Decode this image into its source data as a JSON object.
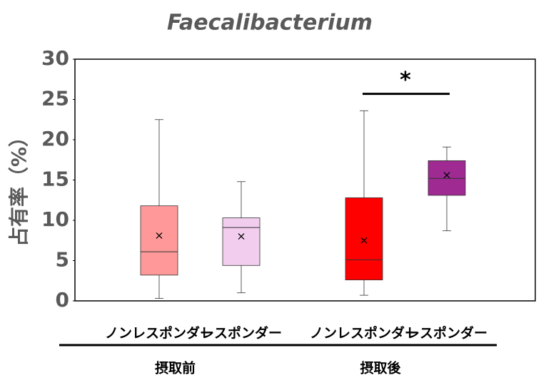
{
  "chart_data": {
    "type": "box",
    "title": "Faecalibacterium",
    "y_label": "占有率（%）",
    "categories": [
      "ノンレスポンダー",
      "レスポンダー",
      "ノンレスポンダー",
      "レスポンダー"
    ],
    "groups": [
      "摂取前",
      "摂取後"
    ],
    "boxes": [
      {
        "min": 0.3,
        "q1": 3.2,
        "median": 6.1,
        "q3": 11.8,
        "max": 22.5,
        "mean": 8.1,
        "color": "#ff9999"
      },
      {
        "min": 1.0,
        "q1": 4.4,
        "median": 9.1,
        "q3": 10.3,
        "max": 14.8,
        "mean": 8.0,
        "color": "#f2cdee"
      },
      {
        "min": 0.7,
        "q1": 2.6,
        "median": 5.1,
        "q3": 12.8,
        "max": 23.6,
        "mean": 7.5,
        "color": "#ff0000"
      },
      {
        "min": 8.7,
        "q1": 13.1,
        "median": 15.2,
        "q3": 17.4,
        "max": 19.1,
        "mean": 15.6,
        "color": "#9e2a92"
      }
    ],
    "annotations": [
      {
        "text": "*",
        "from": 2,
        "to": 3,
        "y": 25.7
      }
    ],
    "ylim": [
      0,
      30
    ],
    "yticks": [
      0,
      5,
      10,
      15,
      20,
      25,
      30
    ]
  }
}
